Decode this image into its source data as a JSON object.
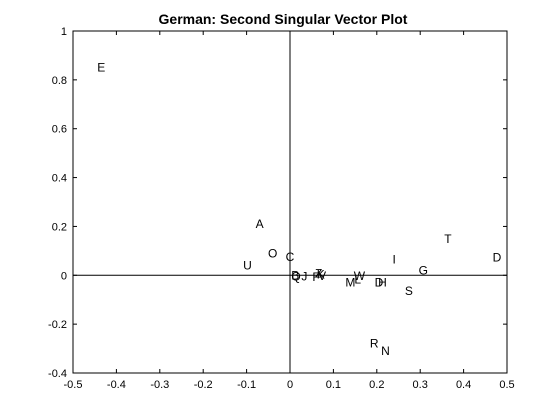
{
  "chart_data": {
    "type": "scatter",
    "title": "German: Second Singular Vector Plot",
    "xlabel": "",
    "ylabel": "",
    "xlim": [
      -0.5,
      0.5
    ],
    "ylim": [
      -0.4,
      1
    ],
    "grid": false,
    "x_ticks": [
      "-0.5",
      "-0.4",
      "-0.3",
      "-0.2",
      "-0.1",
      "0",
      "0.1",
      "0.2",
      "0.3",
      "0.4",
      "0.5"
    ],
    "y_ticks": [
      "-0.4",
      "-0.2",
      "0",
      "0.2",
      "0.4",
      "0.6",
      "0.8",
      "1"
    ],
    "points": [
      {
        "label": "E",
        "x": -0.435,
        "y": 0.85
      },
      {
        "label": "A",
        "x": -0.07,
        "y": 0.21
      },
      {
        "label": "O",
        "x": -0.04,
        "y": 0.09
      },
      {
        "label": "C",
        "x": 0.0,
        "y": 0.075
      },
      {
        "label": "U",
        "x": -0.098,
        "y": 0.04
      },
      {
        "label": "B",
        "x": 0.012,
        "y": 0.0
      },
      {
        "label": "Q",
        "x": 0.014,
        "y": -0.005
      },
      {
        "label": "J",
        "x": 0.033,
        "y": -0.004
      },
      {
        "label": "F",
        "x": 0.06,
        "y": -0.008
      },
      {
        "label": "Z",
        "x": 0.066,
        "y": 0.007
      },
      {
        "label": "K",
        "x": 0.071,
        "y": 0.004
      },
      {
        "label": "V",
        "x": 0.074,
        "y": -0.003
      },
      {
        "label": "W",
        "x": 0.16,
        "y": -0.002
      },
      {
        "label": "L",
        "x": 0.156,
        "y": -0.018
      },
      {
        "label": "M",
        "x": 0.139,
        "y": -0.03
      },
      {
        "label": "D",
        "x": 0.205,
        "y": -0.03
      },
      {
        "label": "H",
        "x": 0.213,
        "y": -0.03
      },
      {
        "label": "I",
        "x": 0.24,
        "y": 0.065
      },
      {
        "label": "G",
        "x": 0.307,
        "y": 0.02
      },
      {
        "label": "S",
        "x": 0.274,
        "y": -0.065
      },
      {
        "label": "T",
        "x": 0.364,
        "y": 0.148
      },
      {
        "label": "D",
        "x": 0.477,
        "y": 0.073
      },
      {
        "label": "R",
        "x": 0.194,
        "y": -0.28
      },
      {
        "label": "N",
        "x": 0.22,
        "y": -0.31
      }
    ]
  }
}
